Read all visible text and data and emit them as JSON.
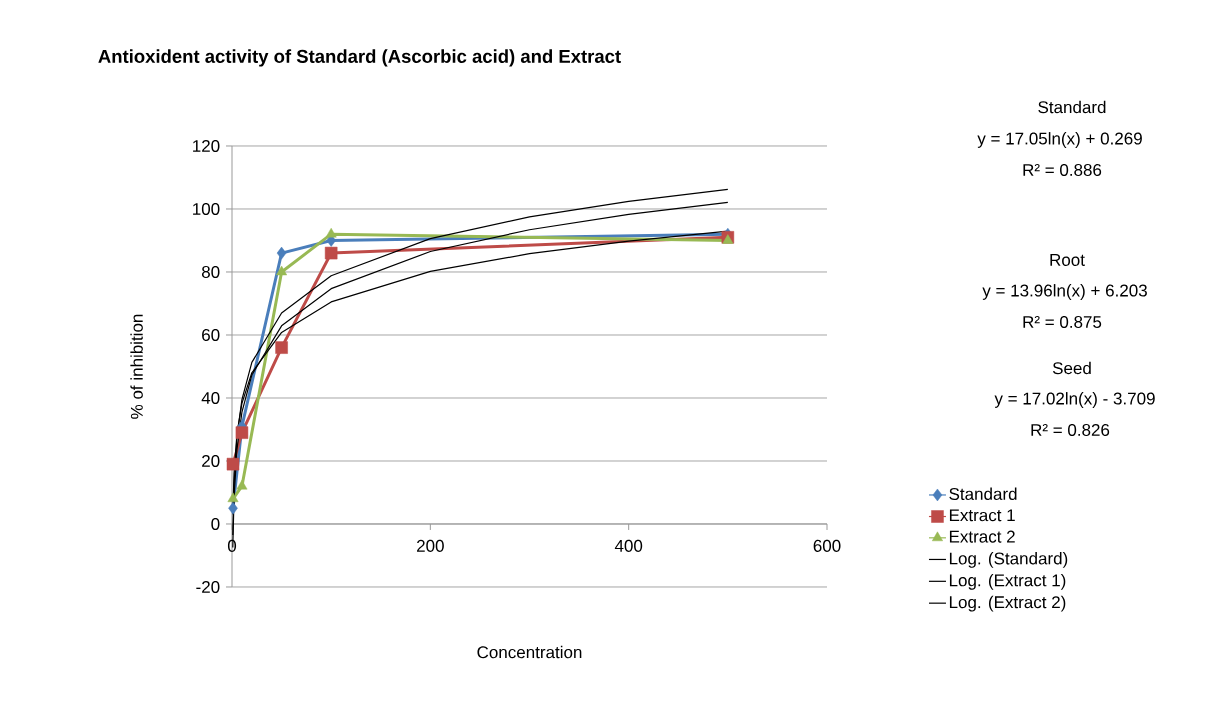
{
  "chart_data": {
    "type": "line",
    "title": "Antioxident activity of Standard (Ascorbic acid) and Extract",
    "xlabel": "Concentration",
    "ylabel": "% of inhibition",
    "xlim": [
      0,
      600
    ],
    "xticks": [
      0,
      200,
      400,
      600
    ],
    "ylim": [
      -20,
      120
    ],
    "yticks": [
      -20,
      0,
      20,
      40,
      60,
      80,
      100,
      120
    ],
    "grid": "y",
    "legend": "right",
    "series": [
      {
        "name": "Standard",
        "color": "#4a7ebb",
        "marker": "diamond",
        "x": [
          1,
          10,
          50,
          100,
          500
        ],
        "values": [
          5,
          31,
          86,
          90,
          92
        ]
      },
      {
        "name": "Extract 1",
        "color": "#be4b48",
        "marker": "square",
        "x": [
          1,
          10,
          50,
          100,
          500
        ],
        "values": [
          19,
          29,
          56,
          86,
          91
        ]
      },
      {
        "name": "Extract 2",
        "color": "#98b954",
        "marker": "triangle",
        "x": [
          1,
          10,
          50,
          100,
          500
        ],
        "values": [
          8,
          12,
          80,
          92,
          90
        ]
      },
      {
        "name": "Log. (Standard)",
        "color": "#000000",
        "marker": "none",
        "x": [
          0.8,
          2,
          5,
          10,
          20,
          50,
          100,
          200,
          300,
          400,
          500
        ],
        "values": [
          -3.5,
          12.1,
          27.7,
          39.5,
          51.3,
          67.0,
          78.8,
          90.6,
          97.5,
          102.4,
          106.2
        ]
      },
      {
        "name": "Log. (Extract 1)",
        "color": "#000000",
        "marker": "none",
        "x": [
          0.8,
          2,
          5,
          10,
          20,
          50,
          100,
          200,
          300,
          400,
          500
        ],
        "values": [
          3.1,
          15.9,
          28.7,
          38.3,
          48.0,
          60.8,
          70.5,
          80.2,
          85.8,
          89.8,
          93.0
        ]
      },
      {
        "name": "Log. (Extract 2)",
        "color": "#000000",
        "marker": "none",
        "x": [
          0.8,
          2,
          5,
          10,
          20,
          50,
          100,
          200,
          300,
          400,
          500
        ],
        "values": [
          -7.5,
          8.1,
          23.7,
          35.5,
          47.3,
          62.9,
          74.7,
          86.5,
          93.4,
          98.3,
          102.1
        ]
      }
    ],
    "annotations": [
      "Standard",
      "y = 17.05ln(x) + 0.269",
      "R² = 0.886",
      "Root",
      "y = 13.96ln(x) + 6.203",
      "R² = 0.875",
      "Seed",
      "y = 17.02ln(x) - 3.709",
      "R² = 0.826"
    ]
  }
}
